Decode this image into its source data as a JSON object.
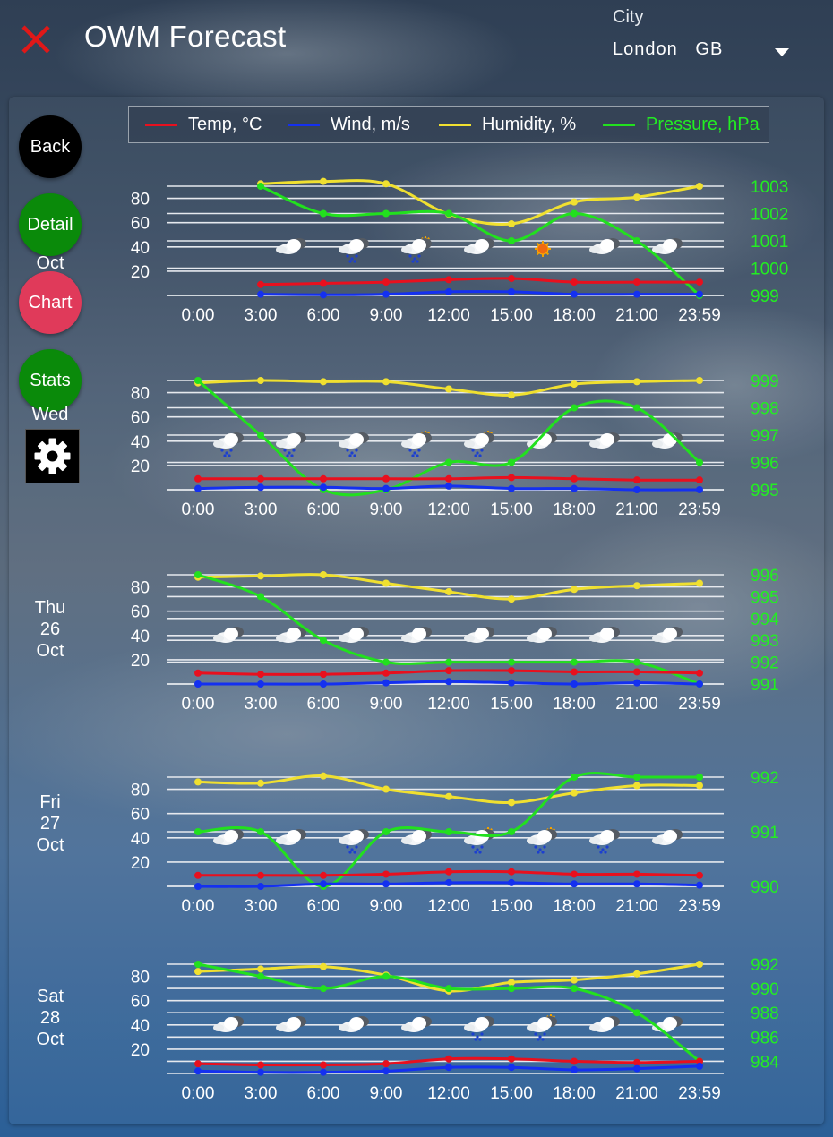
{
  "header": {
    "title": "OWM Forecast",
    "city_label": "City",
    "city": "London",
    "country": "GB"
  },
  "nav": {
    "back": "Back",
    "detail": "Detail",
    "chart": "Chart",
    "stats": "Stats"
  },
  "colors": {
    "temp": "#e8101e",
    "wind": "#1430f0",
    "humidity": "#f0e030",
    "pressure": "#22e01e",
    "pressure_text": "#22ee22",
    "detail_btn": "#0a8a0a",
    "chart_btn": "#e03a5a",
    "stats_btn": "#0a8a0a"
  },
  "legend": [
    {
      "key": "temp",
      "label": "Temp, °C"
    },
    {
      "key": "wind",
      "label": "Wind, m/s"
    },
    {
      "key": "humidity",
      "label": "Humidity, %"
    },
    {
      "key": "pressure",
      "label": "Pressure, hPa"
    }
  ],
  "chart_data": [
    {
      "type": "line",
      "day_lines": [
        "Oct"
      ],
      "x": [
        "0:00",
        "3:00",
        "6:00",
        "9:00",
        "12:00",
        "15:00",
        "18:00",
        "21:00",
        "23:59"
      ],
      "left_ticks": [
        20,
        40,
        60,
        80
      ],
      "left_range": [
        0,
        90
      ],
      "right_ticks": [
        999,
        1000,
        1001,
        1002,
        1003
      ],
      "right_range": [
        999,
        1003
      ],
      "series": {
        "temp": [
          null,
          9,
          10,
          11,
          13,
          14,
          11,
          11,
          11
        ],
        "wind": [
          null,
          1,
          0.5,
          1,
          3,
          3,
          1,
          1,
          1
        ],
        "humidity": [
          null,
          92,
          94,
          92,
          67,
          59,
          77,
          81,
          90
        ],
        "pressure": [
          null,
          1003,
          1002,
          1002,
          1002,
          1001,
          1002,
          1001,
          999
        ]
      },
      "icons": [
        null,
        "cloudy",
        "rain",
        "rain-sun",
        "cloudy",
        "sun",
        "cloudy",
        "cloudy",
        null
      ]
    },
    {
      "type": "line",
      "day_lines": [
        "Wed"
      ],
      "x": [
        "0:00",
        "3:00",
        "6:00",
        "9:00",
        "12:00",
        "15:00",
        "18:00",
        "21:00",
        "23:59"
      ],
      "left_ticks": [
        20,
        40,
        60,
        80
      ],
      "left_range": [
        0,
        90
      ],
      "right_ticks": [
        995,
        996,
        997,
        998,
        999
      ],
      "right_range": [
        995,
        999
      ],
      "series": {
        "temp": [
          9,
          9,
          9,
          9,
          9,
          10,
          9,
          8,
          8
        ],
        "wind": [
          1,
          2,
          2,
          1,
          3,
          1,
          1,
          0,
          0
        ],
        "humidity": [
          88,
          90,
          89,
          89,
          83,
          78,
          87,
          89,
          90
        ],
        "pressure": [
          999,
          997,
          995,
          995,
          996,
          996,
          998,
          998,
          996
        ]
      },
      "icons": [
        "rain",
        "rain",
        "rain",
        "rain-sun",
        "rain-sun",
        "cloudy",
        "cloudy",
        "cloudy",
        null
      ]
    },
    {
      "type": "line",
      "day_lines": [
        "Thu",
        "26",
        "Oct"
      ],
      "x": [
        "0:00",
        "3:00",
        "6:00",
        "9:00",
        "12:00",
        "15:00",
        "18:00",
        "21:00",
        "23:59"
      ],
      "left_ticks": [
        20,
        40,
        60,
        80
      ],
      "left_range": [
        0,
        90
      ],
      "right_ticks": [
        991,
        992,
        993,
        994,
        995,
        996
      ],
      "right_range": [
        991,
        996
      ],
      "series": {
        "temp": [
          9,
          8,
          8,
          9,
          11,
          11,
          10,
          10,
          9
        ],
        "wind": [
          0,
          0,
          0,
          1,
          2,
          1,
          0,
          1,
          0
        ],
        "humidity": [
          88,
          89,
          90,
          83,
          76,
          70,
          78,
          81,
          83
        ],
        "pressure": [
          996,
          995,
          993,
          992,
          992,
          992,
          992,
          992,
          991
        ]
      },
      "icons": [
        "cloudy",
        "cloudy",
        "cloudy",
        "cloudy",
        "cloudy",
        "cloudy",
        "cloudy",
        "cloudy",
        null
      ]
    },
    {
      "type": "line",
      "day_lines": [
        "Fri",
        "27",
        "Oct"
      ],
      "x": [
        "0:00",
        "3:00",
        "6:00",
        "9:00",
        "12:00",
        "15:00",
        "18:00",
        "21:00",
        "23:59"
      ],
      "left_ticks": [
        20,
        40,
        60,
        80
      ],
      "left_range": [
        0,
        90
      ],
      "right_ticks": [
        990,
        991,
        992
      ],
      "right_range": [
        990,
        992
      ],
      "series": {
        "temp": [
          9,
          9,
          9,
          10,
          12,
          12,
          10,
          10,
          9
        ],
        "wind": [
          0,
          0,
          2,
          2,
          3,
          3,
          2,
          2,
          1
        ],
        "humidity": [
          86,
          85,
          91,
          80,
          74,
          69,
          77,
          83,
          83
        ],
        "pressure": [
          991,
          991,
          990,
          991,
          991,
          991,
          992,
          992,
          992
        ]
      },
      "icons": [
        "cloudy",
        "cloudy",
        "rain",
        "cloudy",
        "rain-sun",
        "rain-sun",
        "rain",
        "cloudy",
        null
      ]
    },
    {
      "type": "line",
      "day_lines": [
        "Sat",
        "28",
        "Oct"
      ],
      "x": [
        "0:00",
        "3:00",
        "6:00",
        "9:00",
        "12:00",
        "15:00",
        "18:00",
        "21:00",
        "23:59"
      ],
      "left_ticks": [
        20,
        40,
        60,
        80
      ],
      "left_range": [
        0,
        90
      ],
      "right_ticks": [
        984,
        986,
        988,
        990,
        992
      ],
      "right_range": [
        983,
        992
      ],
      "series": {
        "temp": [
          8,
          7,
          7,
          8,
          12,
          12,
          10,
          9,
          10
        ],
        "wind": [
          2,
          1,
          1,
          2,
          5,
          5,
          3,
          4,
          6
        ],
        "humidity": [
          84,
          86,
          88,
          81,
          68,
          75,
          77,
          82,
          90
        ],
        "pressure": [
          992,
          991,
          990,
          991,
          990,
          990,
          990,
          988,
          984
        ]
      },
      "icons": [
        "cloudy",
        "cloudy",
        "cloudy",
        "cloudy",
        "rain",
        "rain-sun",
        "cloudy",
        "cloudy",
        null
      ]
    }
  ]
}
